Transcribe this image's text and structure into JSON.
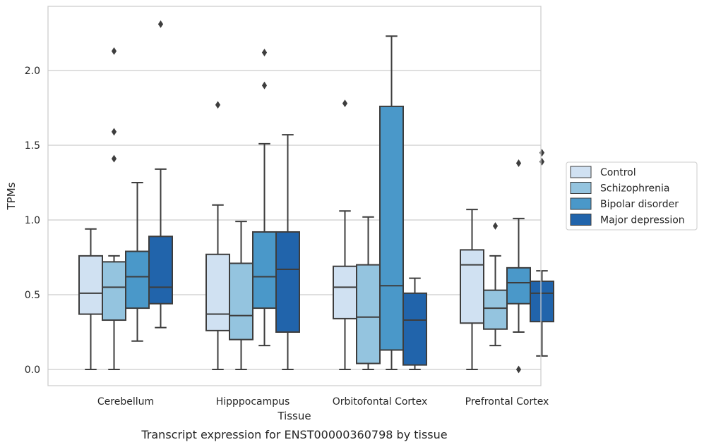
{
  "chart_data": {
    "type": "box",
    "caption": "Transcript expression for ENST00000360798 by tissue",
    "xlabel": "Tissue",
    "ylabel": "TPMs",
    "ylim": [
      -0.11,
      2.43
    ],
    "yticks": [
      "0.0",
      "0.5",
      "1.0",
      "1.5",
      "2.0"
    ],
    "grid": true,
    "legend_position": "right",
    "categories": [
      "Cerebellum",
      "Hipppocampus",
      "Orbitofontal Cortex",
      "Prefrontal Cortex"
    ],
    "series": [
      {
        "name": "Control",
        "color": "#d0e1f2",
        "boxes": [
          {
            "whislo": 0.0,
            "q1": 0.37,
            "med": 0.51,
            "q3": 0.76,
            "whishi": 0.94,
            "fliers": []
          },
          {
            "whislo": 0.0,
            "q1": 0.26,
            "med": 0.37,
            "q3": 0.77,
            "whishi": 1.1,
            "fliers": [
              1.77
            ]
          },
          {
            "whislo": 0.0,
            "q1": 0.34,
            "med": 0.55,
            "q3": 0.69,
            "whishi": 1.06,
            "fliers": [
              1.78
            ]
          },
          {
            "whislo": 0.0,
            "q1": 0.31,
            "med": 0.7,
            "q3": 0.8,
            "whishi": 1.07,
            "fliers": []
          }
        ]
      },
      {
        "name": "Schizophrenia",
        "color": "#94c4df",
        "boxes": [
          {
            "whislo": 0.0,
            "q1": 0.33,
            "med": 0.55,
            "q3": 0.72,
            "whishi": 0.76,
            "fliers": [
              1.41,
              1.59,
              2.13
            ]
          },
          {
            "whislo": 0.0,
            "q1": 0.2,
            "med": 0.36,
            "q3": 0.71,
            "whishi": 0.99,
            "fliers": []
          },
          {
            "whislo": 0.0,
            "q1": 0.04,
            "med": 0.35,
            "q3": 0.7,
            "whishi": 1.02,
            "fliers": []
          },
          {
            "whislo": 0.16,
            "q1": 0.27,
            "med": 0.41,
            "q3": 0.53,
            "whishi": 0.76,
            "fliers": [
              0.96
            ]
          }
        ]
      },
      {
        "name": "Bipolar disorder",
        "color": "#4a98c9",
        "boxes": [
          {
            "whislo": 0.19,
            "q1": 0.41,
            "med": 0.62,
            "q3": 0.79,
            "whishi": 1.25,
            "fliers": []
          },
          {
            "whislo": 0.16,
            "q1": 0.41,
            "med": 0.62,
            "q3": 0.92,
            "whishi": 1.51,
            "fliers": [
              1.9,
              2.12
            ]
          },
          {
            "whislo": 0.0,
            "q1": 0.13,
            "med": 0.56,
            "q3": 1.76,
            "whishi": 2.23,
            "fliers": []
          },
          {
            "whislo": 0.25,
            "q1": 0.44,
            "med": 0.58,
            "q3": 0.68,
            "whishi": 1.01,
            "fliers": [
              0.0,
              1.38
            ]
          }
        ]
      },
      {
        "name": "Major depression",
        "color": "#2164ab",
        "boxes": [
          {
            "whislo": 0.28,
            "q1": 0.44,
            "med": 0.55,
            "q3": 0.89,
            "whishi": 1.34,
            "fliers": [
              2.31
            ]
          },
          {
            "whislo": 0.0,
            "q1": 0.25,
            "med": 0.67,
            "q3": 0.92,
            "whishi": 1.57,
            "fliers": []
          },
          {
            "whislo": 0.0,
            "q1": 0.03,
            "med": 0.33,
            "q3": 0.51,
            "whishi": 0.61,
            "fliers": []
          },
          {
            "whislo": 0.09,
            "q1": 0.32,
            "med": 0.51,
            "q3": 0.59,
            "whishi": 0.66,
            "fliers": [
              1.39,
              1.45
            ]
          }
        ]
      }
    ]
  }
}
